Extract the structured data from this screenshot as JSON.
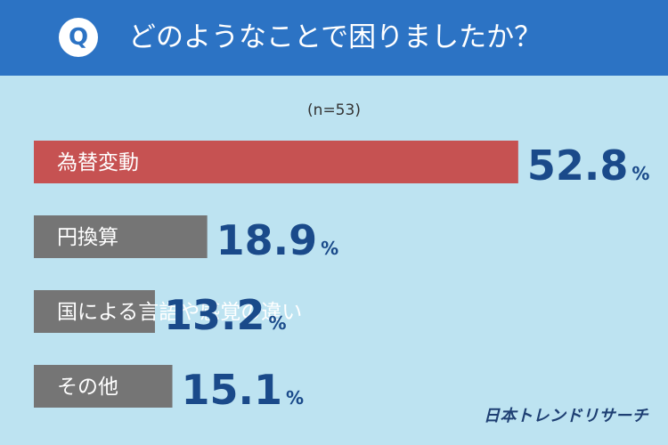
{
  "header": {
    "q_badge": "Q",
    "question": "どのようなことで困りましたか？"
  },
  "sample_label": "(n=53)",
  "brand": "日本トレンドリサーチ",
  "chart_data": {
    "type": "bar",
    "orientation": "horizontal",
    "categories": [
      "為替変動",
      "円換算",
      "国による言語や感覚の違い",
      "その他"
    ],
    "values": [
      52.8,
      18.9,
      13.2,
      15.1
    ],
    "unit": "%",
    "xlim": [
      0,
      100
    ],
    "colors": [
      "#c65252",
      "#757575",
      "#757575",
      "#757575"
    ],
    "value_color": "#1a4a8a",
    "grid": false
  }
}
